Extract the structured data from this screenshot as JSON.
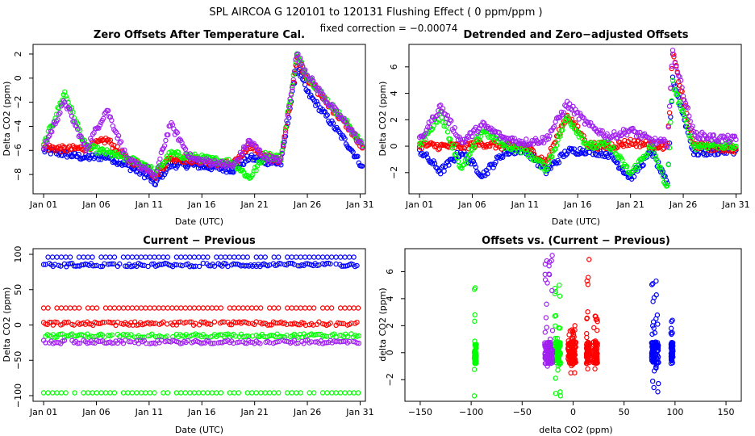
{
  "header": {
    "title": "SPL   AIRCOA G   120101 to 120131   Flushing Effect ( 0 ppm/ppm )",
    "subtitle": "fixed correction = −0.00074"
  },
  "colors": {
    "blue": "#0000ff",
    "red": "#ff0000",
    "green": "#00ff00",
    "purple": "#a020f0"
  },
  "chart_data": [
    {
      "type": "scatter",
      "title": "Zero Offsets After Temperature Cal.",
      "xlabel": "Date (UTC)",
      "ylabel": "Delta CO2 (ppm)",
      "xlim": [
        0.0,
        31.5
      ],
      "ylim": [
        -9.6,
        2.8
      ],
      "x_ticks": [
        1,
        6,
        11,
        16,
        21,
        26,
        31
      ],
      "x_tick_labels": [
        "Jan 01",
        "Jan 06",
        "Jan 11",
        "Jan 16",
        "Jan 21",
        "Jan 26",
        "Jan 31"
      ],
      "y_ticks": [
        2,
        0,
        -2,
        -4,
        -6,
        -8
      ],
      "y_tick_labels": [
        "2",
        "0",
        "−2",
        "−4",
        "−6",
        "−8"
      ],
      "series": [
        {
          "name": "blue",
          "color": "#0000ff",
          "x": [
            1,
            3,
            5,
            7,
            9,
            11,
            11.5,
            13,
            15,
            17,
            19,
            20.5,
            22,
            23.5,
            25,
            26,
            28,
            30,
            31.2
          ],
          "y": [
            -6.0,
            -6.3,
            -6.6,
            -6.5,
            -7.3,
            -8.2,
            -8.8,
            -7.2,
            -7.2,
            -7.4,
            -7.6,
            -6.6,
            -6.9,
            -7.1,
            1.0,
            -1.2,
            -3.4,
            -5.7,
            -7.3
          ]
        },
        {
          "name": "red",
          "color": "#ff0000",
          "x": [
            1,
            3,
            5,
            7,
            9,
            11,
            11.5,
            13,
            15,
            17,
            19,
            20.5,
            22,
            23.5,
            25,
            26,
            28,
            30,
            31.2
          ],
          "y": [
            -5.7,
            -5.9,
            -5.8,
            -5.1,
            -6.8,
            -7.4,
            -8.2,
            -6.6,
            -6.8,
            -7.0,
            -7.2,
            -5.5,
            -6.5,
            -6.8,
            1.7,
            0.0,
            -2.2,
            -4.2,
            -5.8
          ]
        },
        {
          "name": "green",
          "color": "#00ff00",
          "x": [
            1,
            3,
            5,
            7,
            9,
            11,
            11.5,
            13,
            15,
            17,
            19,
            20.5,
            22,
            23.5,
            25,
            26,
            28,
            30,
            31.2
          ],
          "y": [
            -5.6,
            -1.2,
            -5.7,
            -6.2,
            -6.7,
            -7.3,
            -8.0,
            -6.3,
            -6.5,
            -6.8,
            -7.0,
            -8.3,
            -6.4,
            -6.6,
            1.9,
            0.2,
            -2.0,
            -4.0,
            -5.6
          ]
        },
        {
          "name": "purple",
          "color": "#a020f0",
          "x": [
            1,
            3,
            5,
            7,
            9,
            11,
            11.5,
            13,
            15,
            17,
            19,
            20.5,
            22,
            23.5,
            25,
            26,
            28,
            30,
            31.2
          ],
          "y": [
            -5.8,
            -1.9,
            -5.9,
            -2.6,
            -6.9,
            -7.6,
            -8.4,
            -3.8,
            -6.7,
            -7.0,
            -7.3,
            -5.2,
            -6.6,
            -6.9,
            2.0,
            0.3,
            -2.1,
            -4.1,
            -5.7
          ]
        }
      ]
    },
    {
      "type": "scatter",
      "title": "Detrended and Zero−adjusted Offsets",
      "xlabel": "Date (UTC)",
      "ylabel": "Delta CO2 (ppm)",
      "xlim": [
        0.0,
        31.5
      ],
      "ylim": [
        -3.6,
        7.7
      ],
      "x_ticks": [
        1,
        6,
        11,
        16,
        21,
        26,
        31
      ],
      "x_tick_labels": [
        "Jan 01",
        "Jan 06",
        "Jan 11",
        "Jan 16",
        "Jan 21",
        "Jan 26",
        "Jan 31"
      ],
      "y_ticks": [
        6,
        4,
        2,
        0,
        -2
      ],
      "y_tick_labels": [
        "6",
        "4",
        "2",
        "0",
        "−2"
      ],
      "series": [
        {
          "name": "blue",
          "color": "#0000ff",
          "x": [
            1,
            3,
            5,
            7,
            9,
            11,
            13,
            15,
            17,
            19,
            21,
            23,
            24.5,
            25,
            27,
            29,
            31
          ],
          "y": [
            -0.3,
            -1.9,
            -0.4,
            -2.2,
            -0.5,
            -0.2,
            -1.9,
            -0.4,
            -0.3,
            -0.6,
            -2.4,
            -0.4,
            -2.9,
            5.2,
            -0.5,
            -0.4,
            -0.3
          ]
        },
        {
          "name": "red",
          "color": "#ff0000",
          "x": [
            1,
            3,
            5,
            7,
            9,
            11,
            13,
            15,
            17,
            19,
            21,
            23,
            24.5,
            25,
            27,
            29,
            31
          ],
          "y": [
            0.1,
            0.0,
            0.0,
            0.2,
            0.0,
            0.0,
            -1.2,
            2.4,
            0.1,
            0.0,
            0.3,
            0.1,
            0.0,
            7.0,
            0.1,
            -0.1,
            -0.2
          ]
        },
        {
          "name": "green",
          "color": "#00ff00",
          "x": [
            1,
            3,
            5,
            7,
            9,
            11,
            13,
            15,
            17,
            19,
            21,
            23,
            24.5,
            25,
            27,
            29,
            31
          ],
          "y": [
            0.0,
            2.5,
            -1.8,
            1.2,
            0.1,
            -0.3,
            -1.7,
            2.2,
            0.0,
            0.1,
            -2.1,
            0.0,
            -3.2,
            4.8,
            0.0,
            0.1,
            0.0
          ]
        },
        {
          "name": "purple",
          "color": "#a020f0",
          "x": [
            1,
            3,
            5,
            7,
            9,
            11,
            13,
            15,
            17,
            19,
            21,
            23,
            24.5,
            25,
            27,
            29,
            31
          ],
          "y": [
            0.4,
            3.0,
            0.3,
            1.6,
            0.6,
            0.3,
            0.5,
            3.2,
            1.6,
            0.7,
            1.2,
            0.4,
            0.2,
            7.2,
            0.9,
            0.6,
            0.5
          ]
        }
      ]
    },
    {
      "type": "scatter",
      "title": "Current − Previous",
      "xlabel": "Date (UTC)",
      "ylabel": "Delta CO2 (ppm)",
      "xlim": [
        0.0,
        31.5
      ],
      "ylim": [
        -108,
        108
      ],
      "x_ticks": [
        1,
        6,
        11,
        16,
        21,
        26,
        31
      ],
      "x_tick_labels": [
        "Jan 01",
        "Jan 06",
        "Jan 11",
        "Jan 16",
        "Jan 21",
        "Jan 26",
        "Jan 31"
      ],
      "y_ticks": [
        100,
        50,
        0,
        -50,
        -100
      ],
      "y_tick_labels": [
        "100",
        "50",
        "0",
        "−50",
        "−100"
      ],
      "series": [
        {
          "name": "blue",
          "color": "#0000ff",
          "bands": [
            85,
            96
          ],
          "x_range": [
            1,
            31
          ]
        },
        {
          "name": "red",
          "color": "#ff0000",
          "bands": [
            2,
            24
          ],
          "x_range": [
            1,
            31
          ]
        },
        {
          "name": "green",
          "color": "#00ff00",
          "bands": [
            -15,
            -96
          ],
          "x_range": [
            1,
            31
          ]
        },
        {
          "name": "purple",
          "color": "#a020f0",
          "bands": [
            -24
          ],
          "x_range": [
            1,
            31
          ]
        }
      ]
    },
    {
      "type": "scatter",
      "title": "Offsets vs. (Current − Previous)",
      "xlabel": "delta CO2 (ppm)",
      "ylabel": "delta CO2 (ppm)",
      "xlim": [
        -165,
        165
      ],
      "ylim": [
        -3.6,
        7.7
      ],
      "x_ticks": [
        -150,
        -100,
        -50,
        0,
        50,
        100,
        150
      ],
      "x_tick_labels": [
        "−150",
        "−100",
        "−50",
        "0",
        "50",
        "100",
        "150"
      ],
      "y_ticks": [
        6,
        4,
        2,
        0,
        -2
      ],
      "y_tick_labels": [
        "6",
        "4",
        "2",
        "0",
        "−2"
      ],
      "series": [
        {
          "name": "blue",
          "color": "#0000ff",
          "clusters": [
            [
              77,
              84,
              -2.9,
              5.3
            ],
            [
              96,
              98,
              -0.6,
              2.4
            ]
          ]
        },
        {
          "name": "red",
          "color": "#ff0000",
          "clusters": [
            [
              -5,
              3,
              -1.5,
              2.0
            ],
            [
              13,
              16,
              -1.2,
              6.9
            ],
            [
              20,
              24,
              -1.2,
              2.7
            ]
          ]
        },
        {
          "name": "green",
          "color": "#00ff00",
          "clusters": [
            [
              -97,
              -95,
              -3.2,
              4.8
            ],
            [
              -18,
              -12,
              -3.2,
              5.0
            ]
          ]
        },
        {
          "name": "purple",
          "color": "#a020f0",
          "clusters": [
            [
              -28,
              -20,
              -1.0,
              7.2
            ]
          ]
        }
      ]
    }
  ]
}
